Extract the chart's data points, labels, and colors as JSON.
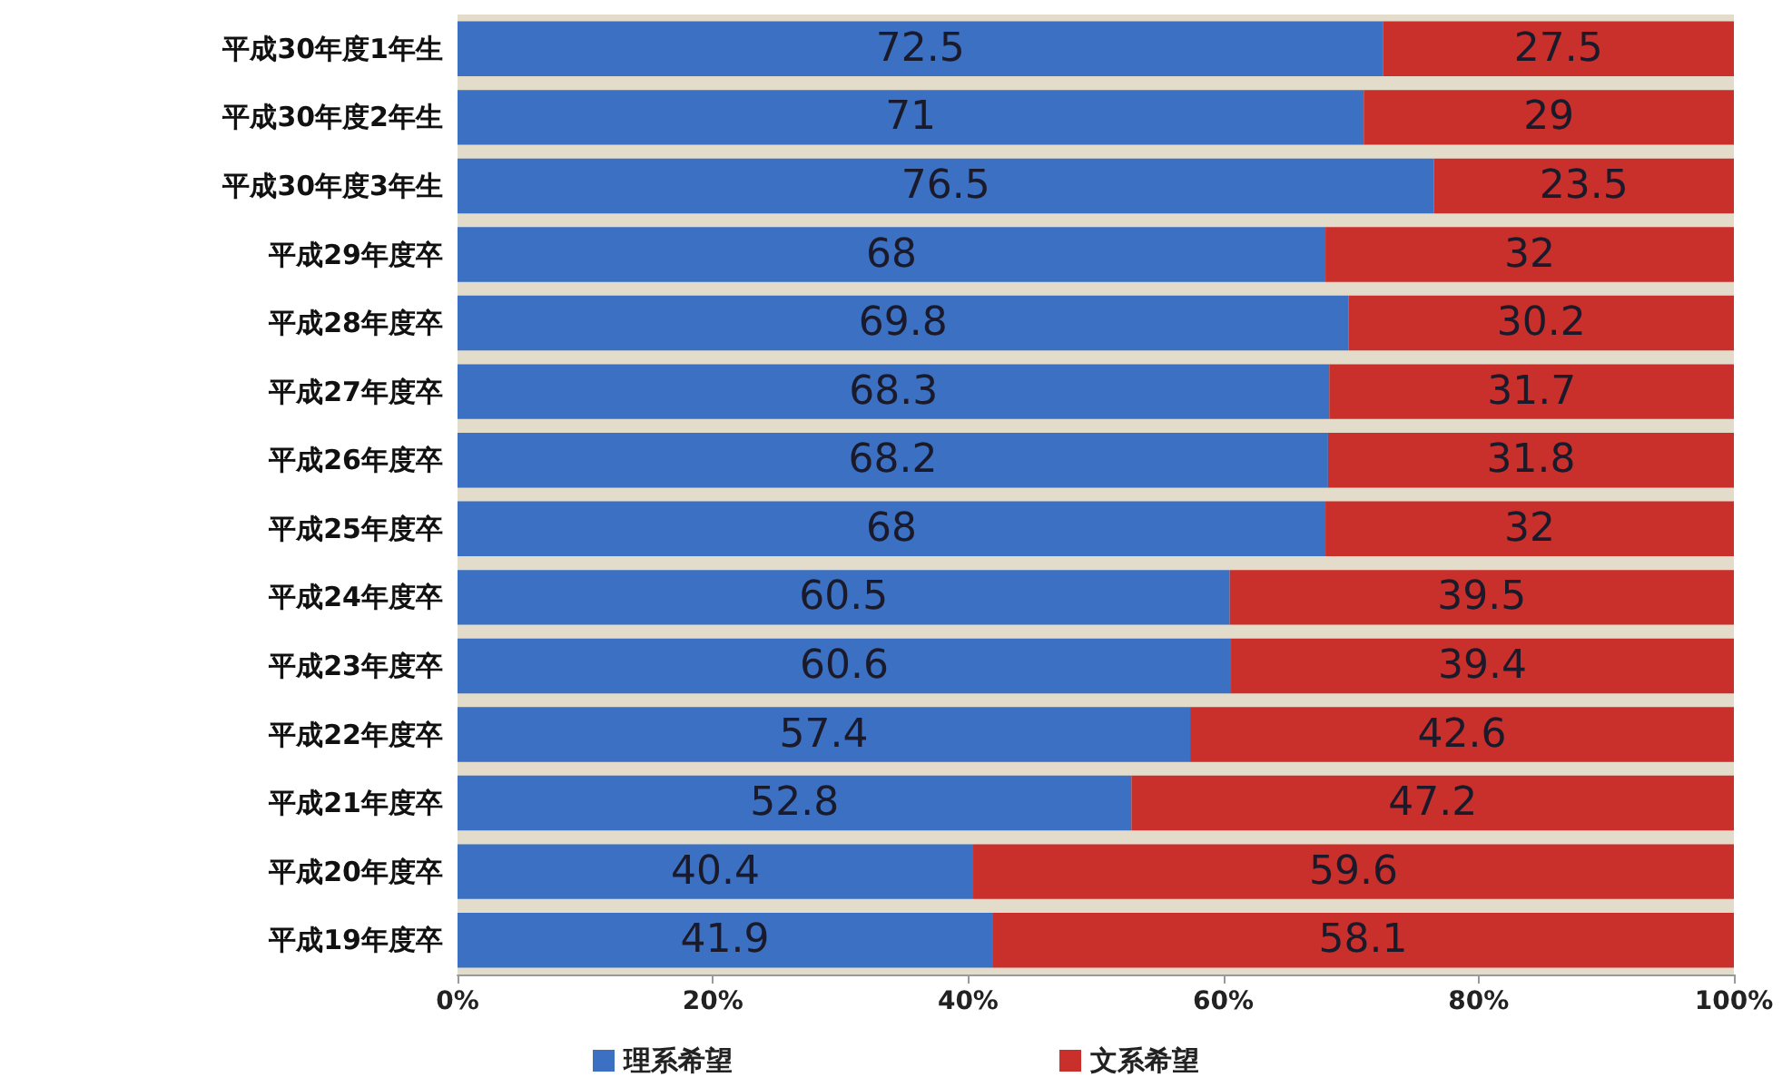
{
  "chart_data": {
    "type": "bar",
    "orientation": "horizontal",
    "stacked": true,
    "data_labels": true,
    "legend": "bottom",
    "grid": false,
    "categories": [
      "平成30年度1年生",
      "平成30年度2年生",
      "平成30年度3年生",
      "平成29年度卒",
      "平成28年度卒",
      "平成27年度卒",
      "平成26年度卒",
      "平成25年度卒",
      "平成24年度卒",
      "平成23年度卒",
      "平成22年度卒",
      "平成21年度卒",
      "平成20年度卒",
      "平成19年度卒"
    ],
    "series": [
      {
        "name": "理系希望",
        "color": "#3b70c2",
        "values": [
          72.5,
          71,
          76.5,
          68,
          69.8,
          68.3,
          68.2,
          68,
          60.5,
          60.6,
          57.4,
          52.8,
          40.4,
          41.9
        ]
      },
      {
        "name": "文系希望",
        "color": "#c9302c",
        "values": [
          27.5,
          29,
          23.5,
          32,
          30.2,
          31.7,
          31.8,
          32,
          39.5,
          39.4,
          42.6,
          47.2,
          59.6,
          58.1
        ]
      }
    ],
    "xlim": [
      0,
      100
    ],
    "xticks": [
      {
        "value": 0,
        "label": "0%"
      },
      {
        "value": 20,
        "label": "20%"
      },
      {
        "value": 40,
        "label": "40%"
      },
      {
        "value": 60,
        "label": "60%"
      },
      {
        "value": 80,
        "label": "80%"
      },
      {
        "value": 100,
        "label": "100%"
      }
    ]
  }
}
